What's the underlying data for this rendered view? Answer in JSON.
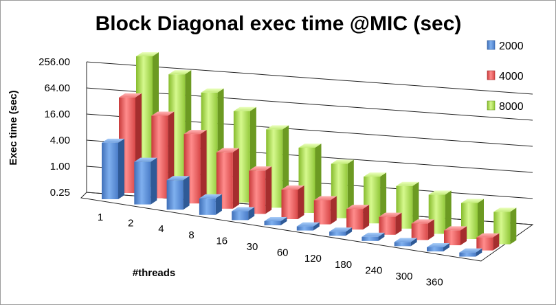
{
  "chart_data": {
    "type": "bar",
    "title": "Block Diagonal exec time @MIC (sec)",
    "xlabel": "#threads",
    "ylabel": "Exec time (sec)",
    "scale": "log2",
    "ylim": [
      0.25,
      256
    ],
    "yticks": [
      "256.00",
      "64.00",
      "16.00",
      "4.00",
      "1.00",
      "0.25"
    ],
    "ytick_values": [
      256,
      64,
      16,
      4,
      1,
      0.25
    ],
    "categories": [
      "1",
      "2",
      "4",
      "8",
      "16",
      "30",
      "60",
      "120",
      "180",
      "240",
      "300",
      "360"
    ],
    "legend_position": "right",
    "series": [
      {
        "name": "2000",
        "color": "#4f81bd",
        "values": [
          5.0,
          2.4,
          1.2,
          0.6,
          0.4,
          0.3,
          0.3,
          0.3,
          0.3,
          0.3,
          0.3,
          0.3
        ]
      },
      {
        "name": "4000",
        "color": "#e05050",
        "values": [
          40,
          20,
          10,
          5.0,
          2.5,
          1.2,
          0.9,
          0.75,
          0.65,
          0.6,
          0.55,
          0.5
        ]
      },
      {
        "name": "8000",
        "color": "#9acd3c",
        "values": [
          256,
          130,
          65,
          32,
          16,
          8,
          4.5,
          3.0,
          2.4,
          2.0,
          1.7,
          1.4
        ]
      }
    ]
  }
}
